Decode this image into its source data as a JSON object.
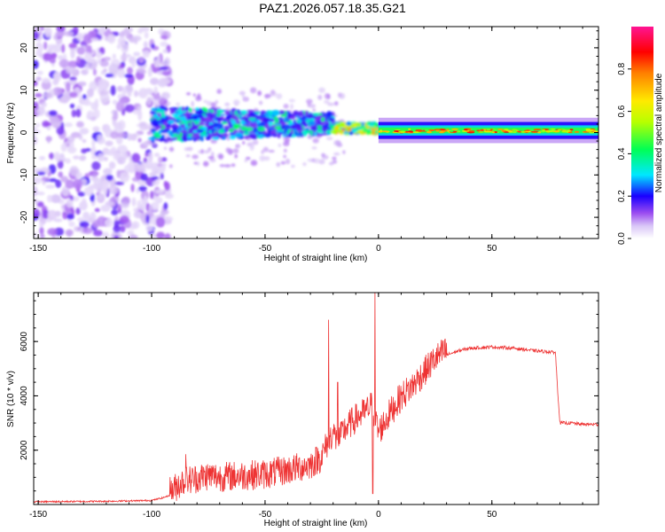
{
  "title": "PAZ1.2026.057.18.35.G21",
  "chart_data": [
    {
      "type": "heatmap",
      "xlabel": "Height of straight line (km)",
      "ylabel": "Frequency (Hz)",
      "xlim": [
        -152,
        97
      ],
      "ylim": [
        -25,
        25
      ],
      "xticks": [
        -150,
        -100,
        -50,
        0,
        50
      ],
      "yticks": [
        -20,
        -10,
        0,
        10,
        20
      ],
      "xtick_labels": [
        "-150",
        "-100",
        "-50",
        "0",
        "50"
      ],
      "ytick_labels": [
        "-20",
        "-10",
        "0",
        "10",
        "20"
      ],
      "colorbar": {
        "label": "Normalized spectral amplitude",
        "range": [
          0,
          1
        ],
        "ticks": [
          0.0,
          0.2,
          0.4,
          0.6,
          0.8
        ],
        "tick_labels": [
          "0.0",
          "0.2",
          "0.4",
          "0.6",
          "0.8"
        ]
      },
      "description_regions": [
        {
          "x_from": -152,
          "x_to": -92,
          "f_from": -25,
          "f_to": 25,
          "amplitude": 0.1
        },
        {
          "x_from": -100,
          "x_to": -20,
          "f_from": -4,
          "f_to": 7,
          "amplitude": 0.25
        },
        {
          "x_from": -20,
          "x_to": 0,
          "f_from": -1,
          "f_to": 3,
          "amplitude": 0.5
        },
        {
          "x_from": 0,
          "x_to": 97,
          "f_from": -1,
          "f_to": 1.5,
          "amplitude": 0.5
        }
      ]
    },
    {
      "type": "line",
      "xlabel": "Height of straight line (km)",
      "ylabel": "SNR (10 * v/v)",
      "xlim": [
        -152,
        97
      ],
      "ylim": [
        0,
        7800
      ],
      "xticks": [
        -150,
        -100,
        -50,
        0,
        50
      ],
      "yticks": [
        2000,
        4000,
        6000
      ],
      "xtick_labels": [
        "-150",
        "-100",
        "-50",
        "0",
        "50"
      ],
      "ytick_labels": [
        "2000",
        "4000",
        "6000"
      ],
      "series": [
        {
          "name": "SNR",
          "color": "#ee3333",
          "x": [
            -152,
            -120,
            -100,
            -95,
            -90,
            -88,
            -85,
            -80,
            -75,
            -70,
            -60,
            -50,
            -40,
            -30,
            -25,
            -22,
            -20,
            -18,
            -15,
            -10,
            -5,
            -3,
            -2,
            0,
            5,
            10,
            15,
            20,
            25,
            30,
            35,
            40,
            50,
            60,
            70,
            78,
            79,
            80,
            85,
            90,
            97
          ],
          "y": [
            100,
            120,
            150,
            250,
            400,
            600,
            700,
            800,
            900,
            850,
            900,
            950,
            1100,
            1300,
            1600,
            2200,
            2500,
            2100,
            2600,
            3000,
            3300,
            3500,
            3200,
            2500,
            3200,
            3800,
            4200,
            4700,
            5200,
            5500,
            5650,
            5750,
            5800,
            5750,
            5650,
            5600,
            4200,
            3000,
            3000,
            2950,
            2950
          ],
          "spikes": [
            {
              "x": -22,
              "y": 6800
            },
            {
              "x": -18,
              "y": 4500
            },
            {
              "x": -1.5,
              "y": 7800
            },
            {
              "x": -2.5,
              "y": 400
            },
            {
              "x": -85,
              "y": 1850
            }
          ],
          "noise_amplitude": [
            {
              "x_from": -152,
              "x_to": -92,
              "amp": 60
            },
            {
              "x_from": -92,
              "x_to": -10,
              "amp": 700
            },
            {
              "x_from": -10,
              "x_to": 30,
              "amp": 700
            },
            {
              "x_from": 30,
              "x_to": 97,
              "amp": 120
            }
          ]
        }
      ]
    }
  ]
}
